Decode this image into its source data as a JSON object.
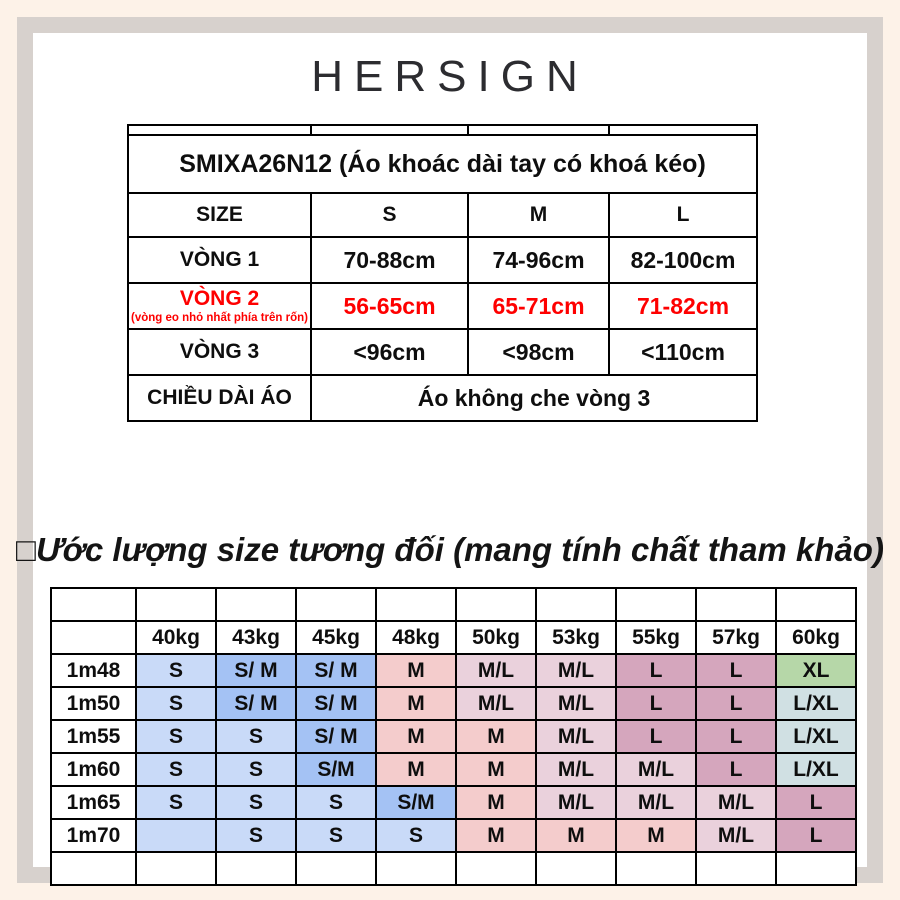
{
  "brand": {
    "logo_text": "HERSIGN"
  },
  "colors": {
    "red": "#fe0000",
    "S": "#c9daf8",
    "SM": "#a4c2f4",
    "M": "#f4cccc",
    "ML": "#ead1dc",
    "L": "#d5a6bd",
    "XL": "#b6d7a8",
    "LXL": "#d0e0e3"
  },
  "spec_table": {
    "title": "SMIXA26N12 (Áo khoác dài tay có khoá kéo)",
    "size_row": {
      "label": "SIZE",
      "sizes": [
        "S",
        "M",
        "L"
      ]
    },
    "rows": [
      {
        "label": "VÒNG 1",
        "sublabel": "",
        "red": false,
        "values": [
          "70-88cm",
          "74-96cm",
          "82-100cm"
        ]
      },
      {
        "label": "VÒNG 2",
        "sublabel": "(vòng eo nhỏ nhất phía trên rốn)",
        "red": true,
        "values": [
          "56-65cm",
          "65-71cm",
          "71-82cm"
        ]
      },
      {
        "label": "VÒNG 3",
        "sublabel": "",
        "red": false,
        "values": [
          "<96cm",
          "<98cm",
          "<110cm"
        ]
      }
    ],
    "length_row": {
      "label": "CHIỀU DÀI ÁO",
      "value": "Áo không che vòng 3"
    }
  },
  "estimate_table": {
    "title": "□Ước lượng size tương đối (mang tính chất tham khảo)",
    "weights": [
      "40kg",
      "43kg",
      "45kg",
      "48kg",
      "50kg",
      "53kg",
      "55kg",
      "57kg",
      "60kg"
    ],
    "rows": [
      {
        "height": "1m48",
        "cells": [
          {
            "t": "S",
            "c": "S"
          },
          {
            "t": "S/ M",
            "c": "SM"
          },
          {
            "t": "S/ M",
            "c": "SM"
          },
          {
            "t": "M",
            "c": "M"
          },
          {
            "t": "M/L",
            "c": "ML"
          },
          {
            "t": "M/L",
            "c": "ML"
          },
          {
            "t": "L",
            "c": "L"
          },
          {
            "t": "L",
            "c": "L"
          },
          {
            "t": "XL",
            "c": "XL"
          }
        ]
      },
      {
        "height": "1m50",
        "cells": [
          {
            "t": "S",
            "c": "S"
          },
          {
            "t": "S/ M",
            "c": "SM"
          },
          {
            "t": "S/ M",
            "c": "SM"
          },
          {
            "t": "M",
            "c": "M"
          },
          {
            "t": "M/L",
            "c": "ML"
          },
          {
            "t": "M/L",
            "c": "ML"
          },
          {
            "t": "L",
            "c": "L"
          },
          {
            "t": "L",
            "c": "L"
          },
          {
            "t": "L/XL",
            "c": "LXL"
          }
        ]
      },
      {
        "height": "1m55",
        "cells": [
          {
            "t": "S",
            "c": "S"
          },
          {
            "t": "S",
            "c": "S"
          },
          {
            "t": "S/ M",
            "c": "SM"
          },
          {
            "t": "M",
            "c": "M"
          },
          {
            "t": "M",
            "c": "M"
          },
          {
            "t": "M/L",
            "c": "ML"
          },
          {
            "t": "L",
            "c": "L"
          },
          {
            "t": "L",
            "c": "L"
          },
          {
            "t": "L/XL",
            "c": "LXL"
          }
        ]
      },
      {
        "height": "1m60",
        "cells": [
          {
            "t": "S",
            "c": "S"
          },
          {
            "t": "S",
            "c": "S"
          },
          {
            "t": "S/M",
            "c": "SM"
          },
          {
            "t": "M",
            "c": "M"
          },
          {
            "t": "M",
            "c": "M"
          },
          {
            "t": "M/L",
            "c": "ML"
          },
          {
            "t": "M/L",
            "c": "ML"
          },
          {
            "t": "L",
            "c": "L"
          },
          {
            "t": "L/XL",
            "c": "LXL"
          }
        ]
      },
      {
        "height": "1m65",
        "cells": [
          {
            "t": "S",
            "c": "S"
          },
          {
            "t": "S",
            "c": "S"
          },
          {
            "t": "S",
            "c": "S"
          },
          {
            "t": "S/M",
            "c": "SM"
          },
          {
            "t": "M",
            "c": "M"
          },
          {
            "t": "M/L",
            "c": "ML"
          },
          {
            "t": "M/L",
            "c": "ML"
          },
          {
            "t": "M/L",
            "c": "ML"
          },
          {
            "t": "L",
            "c": "L"
          }
        ]
      },
      {
        "height": "1m70",
        "cells": [
          {
            "t": "",
            "c": "S"
          },
          {
            "t": "S",
            "c": "S"
          },
          {
            "t": "S",
            "c": "S"
          },
          {
            "t": "S",
            "c": "S"
          },
          {
            "t": "M",
            "c": "M"
          },
          {
            "t": "M",
            "c": "M"
          },
          {
            "t": "M",
            "c": "M"
          },
          {
            "t": "M/L",
            "c": "ML"
          },
          {
            "t": "L",
            "c": "L"
          }
        ]
      }
    ]
  }
}
